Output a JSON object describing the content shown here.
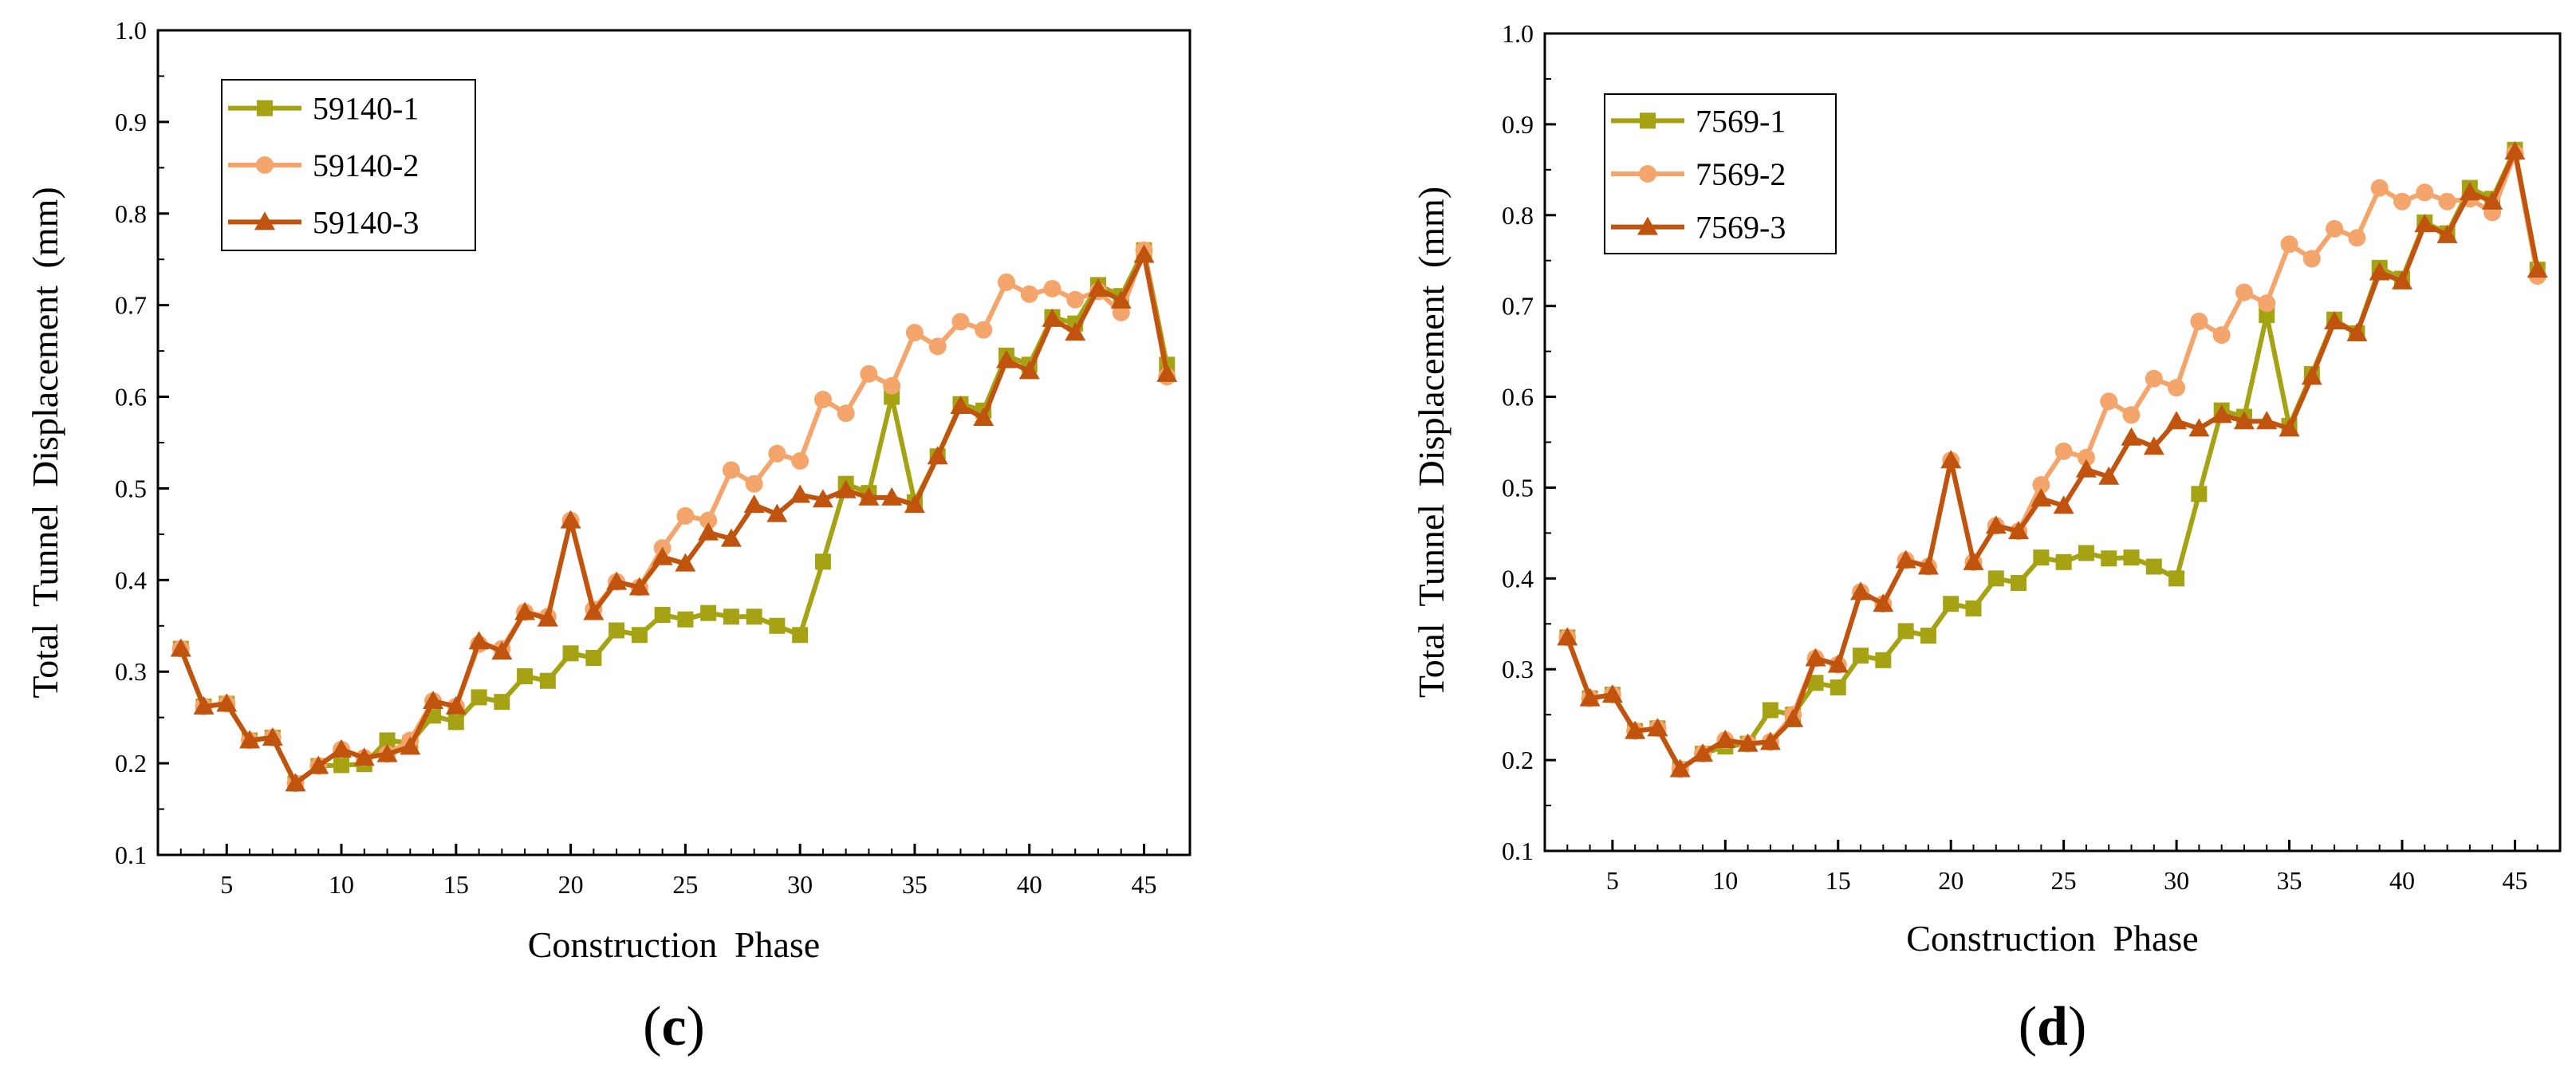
{
  "chart_data": [
    {
      "type": "line",
      "panel_label": "c",
      "xlabel": "Construction Phase",
      "ylabel": "Total Tunnel Displacement (mm)",
      "xlim": [
        2,
        47
      ],
      "ylim": [
        0.1,
        1.0
      ],
      "xticks": [
        5,
        10,
        15,
        20,
        25,
        30,
        35,
        40,
        45
      ],
      "yticks": [
        0.1,
        0.2,
        0.3,
        0.4,
        0.5,
        0.6,
        0.7,
        0.8,
        0.9,
        1.0
      ],
      "legend_position": "top-left",
      "x": [
        3,
        4,
        5,
        6,
        7,
        8,
        9,
        10,
        11,
        12,
        13,
        14,
        15,
        16,
        17,
        18,
        19,
        20,
        21,
        22,
        23,
        24,
        25,
        26,
        27,
        28,
        29,
        30,
        31,
        32,
        33,
        34,
        35,
        36,
        37,
        38,
        39,
        40,
        41,
        42,
        43,
        44,
        45,
        46
      ],
      "series": [
        {
          "name": "59140-1",
          "color": "#a5a213",
          "marker": "square",
          "values": [
            0.325,
            0.262,
            0.265,
            0.225,
            0.228,
            0.178,
            0.197,
            0.198,
            0.199,
            0.225,
            0.222,
            0.252,
            0.245,
            0.272,
            0.267,
            0.295,
            0.29,
            0.32,
            0.315,
            0.345,
            0.34,
            0.362,
            0.357,
            0.364,
            0.36,
            0.36,
            0.35,
            0.34,
            0.42,
            0.505,
            0.495,
            0.6,
            0.485,
            0.535,
            0.592,
            0.585,
            0.645,
            0.635,
            0.687,
            0.68,
            0.722,
            0.71,
            0.76,
            0.635
          ]
        },
        {
          "name": "59140-2",
          "color": "#f4a56b",
          "marker": "circle",
          "values": [
            0.325,
            0.262,
            0.265,
            0.225,
            0.228,
            0.178,
            0.197,
            0.215,
            0.206,
            0.21,
            0.225,
            0.268,
            0.262,
            0.33,
            0.325,
            0.365,
            0.36,
            0.465,
            0.368,
            0.398,
            0.392,
            0.435,
            0.47,
            0.465,
            0.52,
            0.505,
            0.538,
            0.53,
            0.597,
            0.582,
            0.625,
            0.612,
            0.67,
            0.655,
            0.682,
            0.673,
            0.725,
            0.712,
            0.718,
            0.706,
            0.715,
            0.692,
            0.76,
            0.622
          ]
        },
        {
          "name": "59140-3",
          "color": "#c0540e",
          "marker": "triangle",
          "values": [
            0.325,
            0.262,
            0.265,
            0.225,
            0.228,
            0.178,
            0.197,
            0.215,
            0.206,
            0.21,
            0.218,
            0.268,
            0.262,
            0.333,
            0.322,
            0.365,
            0.358,
            0.465,
            0.365,
            0.398,
            0.392,
            0.425,
            0.418,
            0.452,
            0.445,
            0.482,
            0.472,
            0.493,
            0.488,
            0.498,
            0.49,
            0.49,
            0.482,
            0.535,
            0.59,
            0.577,
            0.64,
            0.628,
            0.685,
            0.67,
            0.718,
            0.705,
            0.755,
            0.625
          ]
        }
      ]
    },
    {
      "type": "line",
      "panel_label": "d",
      "xlabel": "Construction Phase",
      "ylabel": "Total Tunnel Displacement (mm)",
      "xlim": [
        2,
        47
      ],
      "ylim": [
        0.1,
        1.0
      ],
      "xticks": [
        5,
        10,
        15,
        20,
        25,
        30,
        35,
        40,
        45
      ],
      "yticks": [
        0.1,
        0.2,
        0.3,
        0.4,
        0.5,
        0.6,
        0.7,
        0.8,
        0.9,
        1.0
      ],
      "legend_position": "top-left",
      "x": [
        3,
        4,
        5,
        6,
        7,
        8,
        9,
        10,
        11,
        12,
        13,
        14,
        15,
        16,
        17,
        18,
        19,
        20,
        21,
        22,
        23,
        24,
        25,
        26,
        27,
        28,
        29,
        30,
        31,
        32,
        33,
        34,
        35,
        36,
        37,
        38,
        39,
        40,
        41,
        42,
        43,
        44,
        45,
        46
      ],
      "series": [
        {
          "name": "7569-1",
          "color": "#a5a213",
          "marker": "square",
          "values": [
            0.335,
            0.268,
            0.272,
            0.232,
            0.235,
            0.19,
            0.207,
            0.215,
            0.218,
            0.255,
            0.25,
            0.285,
            0.28,
            0.315,
            0.31,
            0.342,
            0.337,
            0.372,
            0.367,
            0.4,
            0.395,
            0.423,
            0.418,
            0.428,
            0.422,
            0.423,
            0.413,
            0.4,
            0.493,
            0.585,
            0.578,
            0.69,
            0.568,
            0.625,
            0.685,
            0.67,
            0.742,
            0.73,
            0.792,
            0.78,
            0.83,
            0.818,
            0.872,
            0.74
          ]
        },
        {
          "name": "7569-2",
          "color": "#f4a56b",
          "marker": "circle",
          "values": [
            0.335,
            0.268,
            0.272,
            0.232,
            0.235,
            0.19,
            0.207,
            0.222,
            0.218,
            0.22,
            0.25,
            0.312,
            0.305,
            0.385,
            0.372,
            0.42,
            0.413,
            0.53,
            0.418,
            0.458,
            0.452,
            0.503,
            0.54,
            0.533,
            0.595,
            0.58,
            0.62,
            0.61,
            0.683,
            0.668,
            0.715,
            0.703,
            0.768,
            0.752,
            0.785,
            0.775,
            0.83,
            0.815,
            0.825,
            0.815,
            0.818,
            0.803,
            0.868,
            0.733
          ]
        },
        {
          "name": "7569-3",
          "color": "#c0540e",
          "marker": "triangle",
          "values": [
            0.335,
            0.268,
            0.272,
            0.232,
            0.235,
            0.19,
            0.207,
            0.222,
            0.218,
            0.22,
            0.245,
            0.312,
            0.305,
            0.385,
            0.372,
            0.42,
            0.413,
            0.53,
            0.418,
            0.458,
            0.452,
            0.488,
            0.48,
            0.52,
            0.512,
            0.555,
            0.545,
            0.573,
            0.565,
            0.58,
            0.573,
            0.573,
            0.565,
            0.622,
            0.683,
            0.67,
            0.737,
            0.727,
            0.79,
            0.778,
            0.825,
            0.815,
            0.87,
            0.74
          ]
        }
      ]
    }
  ]
}
